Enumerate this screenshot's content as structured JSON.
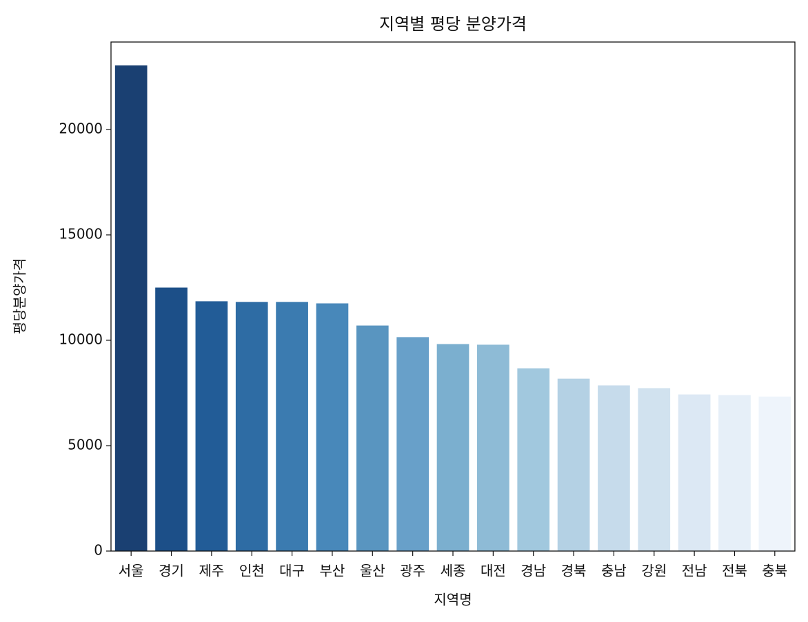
{
  "chart_data": {
    "type": "bar",
    "title": "지역별 평당 분양가격",
    "x_label": "지역명",
    "y_label": "평당분양가격",
    "categories": [
      "서울",
      "경기",
      "제주",
      "인천",
      "대구",
      "부산",
      "울산",
      "광주",
      "세종",
      "대전",
      "경남",
      "경북",
      "충남",
      "강원",
      "전남",
      "전북",
      "충북"
    ],
    "values": [
      23040,
      12500,
      11850,
      11820,
      11820,
      11750,
      10700,
      10150,
      9820,
      9790,
      8670,
      8180,
      7860,
      7730,
      7430,
      7400,
      7330
    ],
    "colors": [
      "#1a4072",
      "#1c4f88",
      "#225c97",
      "#2e6ca4",
      "#3b7bb0",
      "#4888ba",
      "#5995c0",
      "#68a0c9",
      "#7bafcf",
      "#8ebbd6",
      "#a1c8de",
      "#b4d1e4",
      "#c6dbeb",
      "#d1e2ef",
      "#dce8f4",
      "#e6eff8",
      "#eef4fb"
    ],
    "ylim": [
      0,
      24150
    ],
    "yticks": [
      0,
      5000,
      10000,
      15000,
      20000
    ],
    "grid": false
  }
}
